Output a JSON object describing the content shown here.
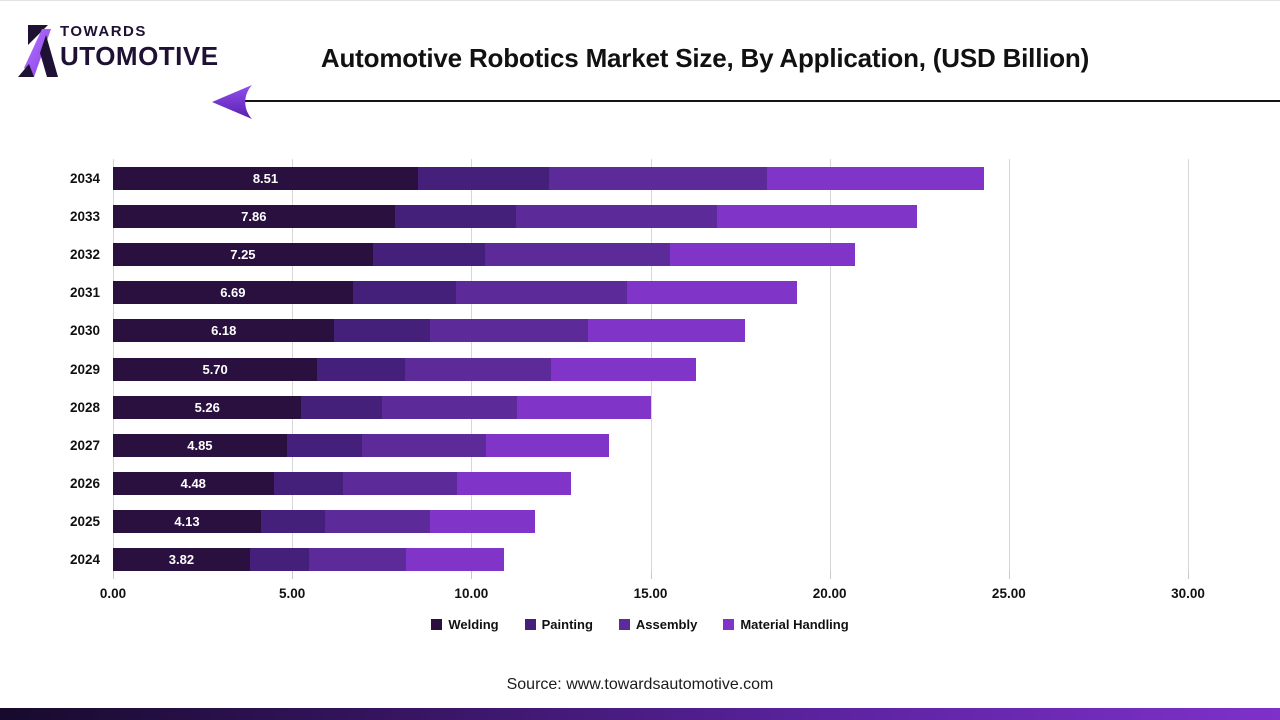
{
  "header": {
    "logo": {
      "line1": "TOWARDS",
      "line2": "UTOMOTIVE",
      "mark_icon": "stylized-letter-a",
      "dark_color": "#1e1133",
      "accent_color": "#9c5bf5"
    },
    "title": "Automotive Robotics Market Size, By Application, (USD Billion)"
  },
  "chart_data": {
    "type": "bar",
    "orientation": "horizontal",
    "stacked": true,
    "title": "Automotive Robotics Market Size, By Application, (USD Billion)",
    "categories": [
      "2034",
      "2033",
      "2032",
      "2031",
      "2030",
      "2029",
      "2028",
      "2027",
      "2026",
      "2025",
      "2024"
    ],
    "series": [
      {
        "name": "Welding",
        "color": "#29103f",
        "values": [
          8.51,
          7.86,
          7.25,
          6.69,
          6.18,
          5.7,
          5.26,
          4.85,
          4.48,
          4.13,
          3.82
        ],
        "labels": [
          "8.51",
          "7.86",
          "7.25",
          "6.69",
          "6.18",
          "5.70",
          "5.26",
          "4.85",
          "4.48",
          "4.13",
          "3.82"
        ],
        "labels_shown": true
      },
      {
        "name": "Painting",
        "color": "#45207b",
        "values": [
          3.66,
          3.38,
          3.12,
          2.88,
          2.66,
          2.45,
          2.26,
          2.09,
          1.93,
          1.78,
          1.64
        ],
        "labels_shown": false,
        "values_estimated": true
      },
      {
        "name": "Assembly",
        "color": "#5d2b99",
        "values": [
          6.09,
          5.62,
          5.18,
          4.78,
          4.42,
          4.08,
          3.76,
          3.47,
          3.2,
          2.95,
          2.73
        ],
        "labels_shown": false,
        "values_estimated": true
      },
      {
        "name": "Material Handling",
        "color": "#8134c8",
        "values": [
          6.04,
          5.58,
          5.15,
          4.75,
          4.39,
          4.05,
          3.73,
          3.44,
          3.18,
          2.93,
          2.71
        ],
        "labels_shown": false,
        "values_estimated": true
      }
    ],
    "totals_approx": [
      24.3,
      22.44,
      20.7,
      19.1,
      17.65,
      16.28,
      15.01,
      13.85,
      12.79,
      11.79,
      10.9
    ],
    "x_ticks": [
      "0.00",
      "5.00",
      "10.00",
      "15.00",
      "20.00",
      "25.00",
      "30.00"
    ],
    "x_tick_values": [
      0,
      5,
      10,
      15,
      20,
      25,
      30
    ],
    "xlim": [
      0,
      31.2
    ],
    "grid": "vertical-only",
    "gridline_color": "#d6d6d6",
    "legend_position": "bottom",
    "value_label_color": "#ffffff"
  },
  "footer": {
    "source_text": "Source: www.towardsautomotive.com"
  }
}
